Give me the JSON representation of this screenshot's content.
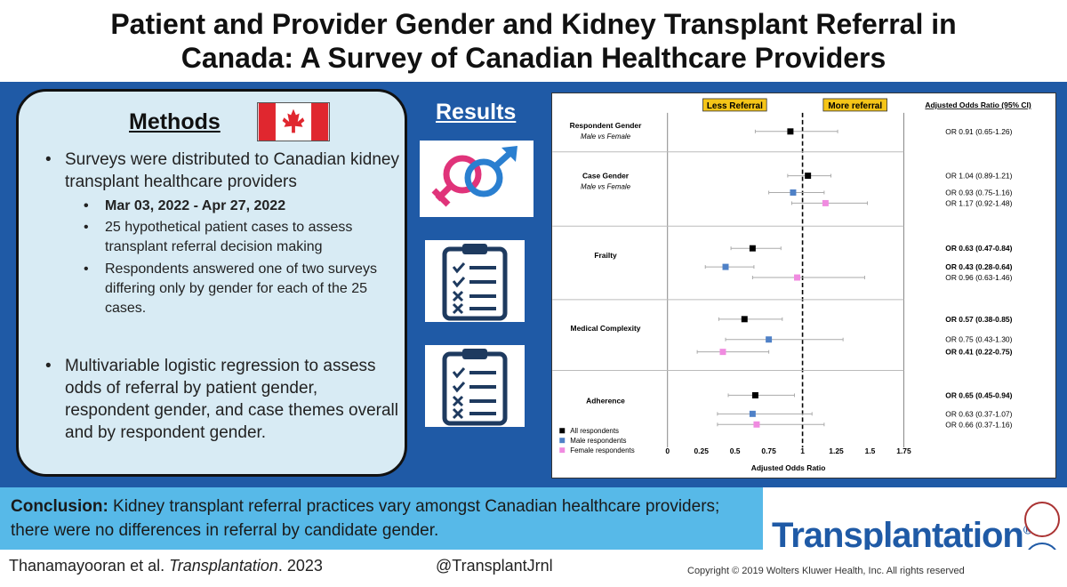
{
  "title": {
    "line1": "Patient and Provider Gender and Kidney Transplant Referral in",
    "line2": "Canada: A Survey of Canadian Healthcare Providers"
  },
  "methods": {
    "heading": "Methods",
    "bullets": [
      "Surveys were distributed to Canadian kidney transplant healthcare providers",
      "Multivariable logistic regression to assess  odds of referral by patient gender, respondent gender, and case themes overall and by respondent gender."
    ],
    "sub_bullets": [
      "Mar 03, 2022 - Apr 27, 2022",
      "25 hypothetical patient cases to assess transplant referral decision making",
      "Respondents answered one of two surveys differing only by gender for each of the 25 cases."
    ]
  },
  "results": {
    "heading": "Results"
  },
  "chart_data": {
    "type": "forest",
    "direction_labels": {
      "left": "Less Referral",
      "right": "More referral"
    },
    "xlabel": "Adjusted Odds Ratio",
    "column_header": "Adjusted Odds Ratio (95% CI)",
    "xlim": [
      0,
      1.75
    ],
    "x_ticks": [
      "0",
      "0.25",
      "0.5",
      "0.75",
      "1",
      "1.25",
      "1.5",
      "1.75"
    ],
    "reference_line": 1,
    "colors": {
      "all": "#000000",
      "male": "#4f81c7",
      "female": "#f08be0"
    },
    "legend": [
      "All respondents",
      "Male respondents",
      "Female respondents"
    ],
    "groups": [
      {
        "label": "Respondent Gender",
        "sublabel": "Male vs Female",
        "rows": [
          {
            "group": "all",
            "or": 0.91,
            "lo": 0.65,
            "hi": 1.26,
            "text": "OR 0.91 (0.65-1.26)",
            "bold": false
          }
        ]
      },
      {
        "label": "Case Gender",
        "sublabel": "Male vs  Female",
        "rows": [
          {
            "group": "all",
            "or": 1.04,
            "lo": 0.89,
            "hi": 1.21,
            "text": "OR 1.04 (0.89-1.21)",
            "bold": false
          },
          {
            "group": "male",
            "or": 0.93,
            "lo": 0.75,
            "hi": 1.16,
            "text": "OR 0.93 (0.75-1.16)",
            "bold": false
          },
          {
            "group": "female",
            "or": 1.17,
            "lo": 0.92,
            "hi": 1.48,
            "text": "OR 1.17 (0.92-1.48)",
            "bold": false
          }
        ]
      },
      {
        "label": "Frailty",
        "sublabel": "",
        "rows": [
          {
            "group": "all",
            "or": 0.63,
            "lo": 0.47,
            "hi": 0.84,
            "text": "OR 0.63 (0.47-0.84)",
            "bold": true
          },
          {
            "group": "male",
            "or": 0.43,
            "lo": 0.28,
            "hi": 0.64,
            "text": "OR 0.43 (0.28-0.64)",
            "bold": true
          },
          {
            "group": "female",
            "or": 0.96,
            "lo": 0.63,
            "hi": 1.46,
            "text": "OR 0.96 (0.63-1.46)",
            "bold": false
          }
        ]
      },
      {
        "label": "Medical Complexity",
        "sublabel": "",
        "rows": [
          {
            "group": "all",
            "or": 0.57,
            "lo": 0.38,
            "hi": 0.85,
            "text": "OR 0.57 (0.38-0.85)",
            "bold": true
          },
          {
            "group": "male",
            "or": 0.75,
            "lo": 0.43,
            "hi": 1.3,
            "text": "OR 0.75 (0.43-1.30)",
            "bold": false
          },
          {
            "group": "female",
            "or": 0.41,
            "lo": 0.22,
            "hi": 0.75,
            "text": "OR 0.41 (0.22-0.75)",
            "bold": true
          }
        ]
      },
      {
        "label": "Adherence",
        "sublabel": "",
        "rows": [
          {
            "group": "all",
            "or": 0.65,
            "lo": 0.45,
            "hi": 0.94,
            "text": "OR 0.65 (0.45-0.94)",
            "bold": true
          },
          {
            "group": "male",
            "or": 0.63,
            "lo": 0.37,
            "hi": 1.07,
            "text": "OR 0.63 (0.37-1.07)",
            "bold": false
          },
          {
            "group": "female",
            "or": 0.66,
            "lo": 0.37,
            "hi": 1.16,
            "text": "OR 0.66 (0.37-1.16)",
            "bold": false
          }
        ]
      }
    ]
  },
  "conclusion": {
    "label": "Conclusion:",
    "text": " Kidney transplant referral practices vary amongst Canadian healthcare providers; there were no differences in referral by candidate gender."
  },
  "journal": {
    "name": "Transplantation",
    "mark": "®"
  },
  "footer": {
    "citation_authors": "Thanamayooran et al. ",
    "citation_journal": "Transplantation",
    "citation_year": ". 2023",
    "twitter": "@TransplantJrnl",
    "copyright": "Copyright © 2019 Wolters Kluwer Health, Inc. All rights reserved"
  }
}
